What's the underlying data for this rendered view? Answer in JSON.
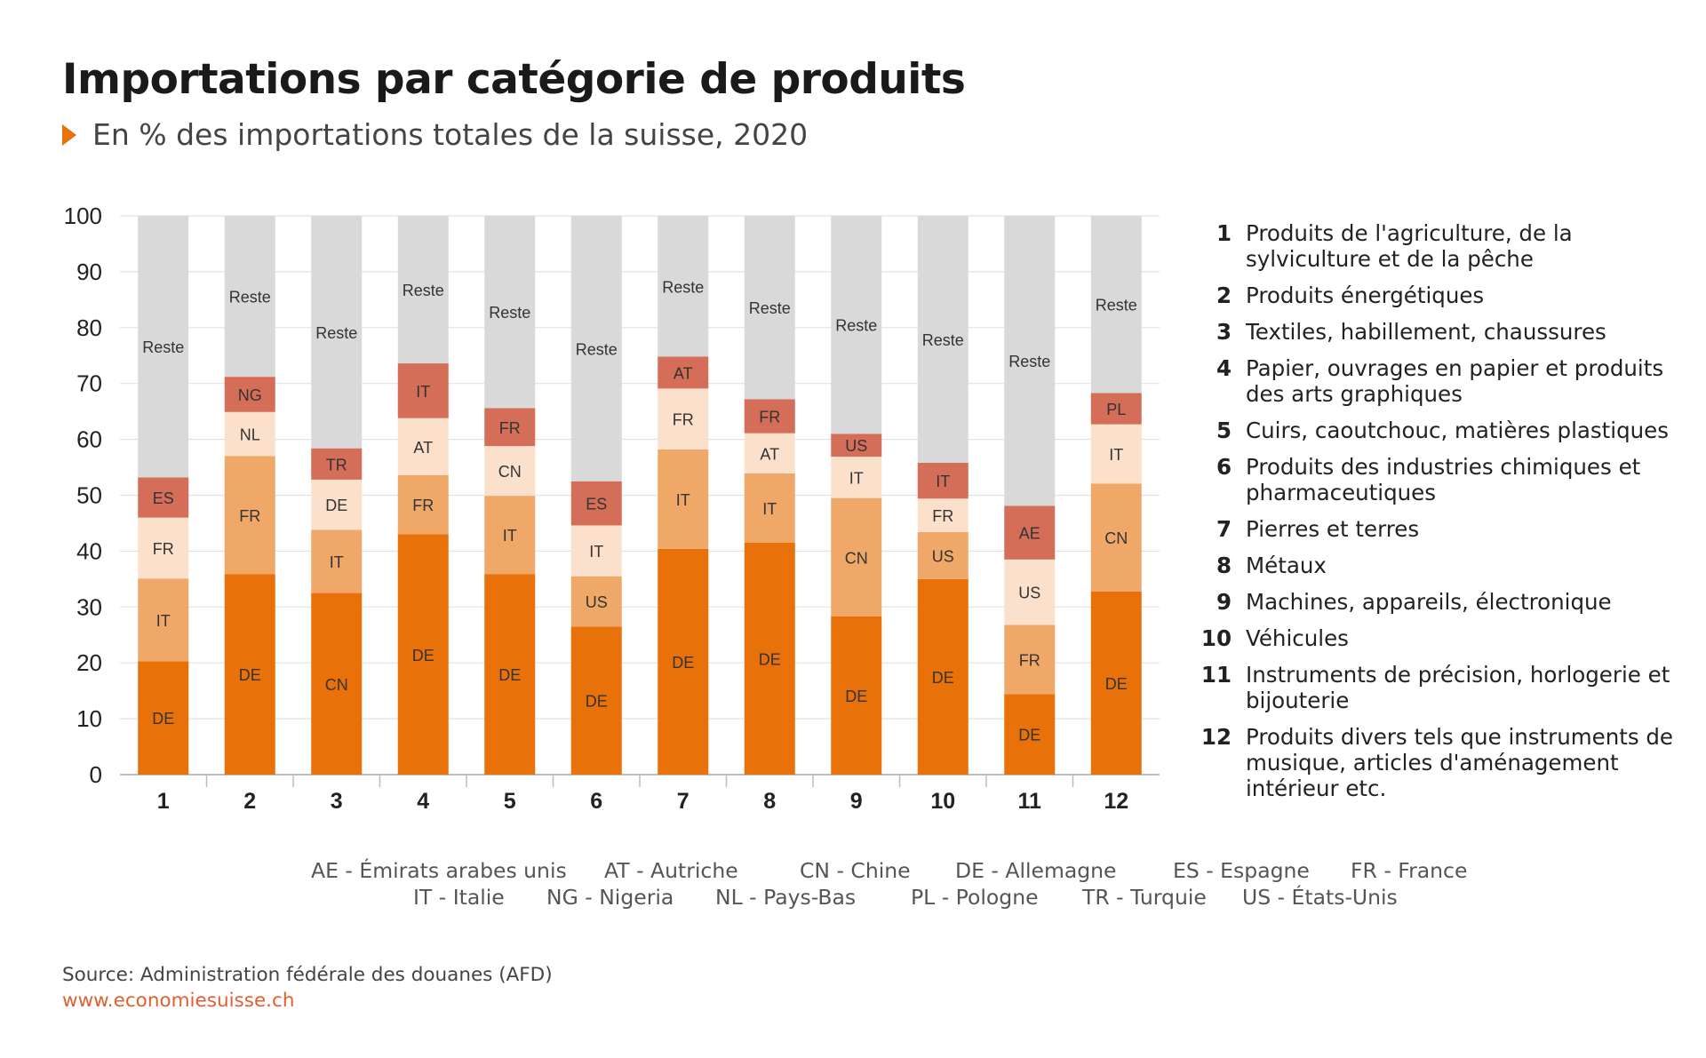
{
  "header": {
    "title": "Importations par catégorie de produits",
    "subtitle": "En % des importations totales de la suisse, 2020"
  },
  "colors": {
    "DE": "#e8710a",
    "second": "#f0a868",
    "third": "#fbe0cc",
    "fourth": "#d46e58",
    "reste": "#d9d9d9",
    "accent": "#e8710a"
  },
  "chart_data": {
    "type": "bar",
    "stacked": true,
    "ylim": [
      0,
      100
    ],
    "yticks": [
      0,
      10,
      20,
      30,
      40,
      50,
      60,
      70,
      80,
      90,
      100
    ],
    "grid": true,
    "categories": [
      "1",
      "2",
      "3",
      "4",
      "5",
      "6",
      "7",
      "8",
      "9",
      "10",
      "11",
      "12"
    ],
    "bars": [
      {
        "category": "1",
        "segments": [
          {
            "label": "DE",
            "value": 20.3
          },
          {
            "label": "IT",
            "value": 14.8
          },
          {
            "label": "FR",
            "value": 10.9
          },
          {
            "label": "ES",
            "value": 7.2
          },
          {
            "label": "Reste",
            "value": 46.8
          }
        ]
      },
      {
        "category": "2",
        "segments": [
          {
            "label": "DE",
            "value": 35.9
          },
          {
            "label": "FR",
            "value": 21.1
          },
          {
            "label": "NL",
            "value": 7.9
          },
          {
            "label": "NG",
            "value": 6.3
          },
          {
            "label": "Reste",
            "value": 28.8
          }
        ]
      },
      {
        "category": "3",
        "segments": [
          {
            "label": "CN",
            "value": 32.5
          },
          {
            "label": "IT",
            "value": 11.3
          },
          {
            "label": "DE",
            "value": 9.0
          },
          {
            "label": "TR",
            "value": 5.6
          },
          {
            "label": "Reste",
            "value": 41.6
          }
        ]
      },
      {
        "category": "4",
        "segments": [
          {
            "label": "DE",
            "value": 43.0
          },
          {
            "label": "FR",
            "value": 10.6
          },
          {
            "label": "AT",
            "value": 10.2
          },
          {
            "label": "IT",
            "value": 9.8
          },
          {
            "label": "Reste",
            "value": 26.4
          }
        ]
      },
      {
        "category": "5",
        "segments": [
          {
            "label": "DE",
            "value": 35.9
          },
          {
            "label": "IT",
            "value": 14.0
          },
          {
            "label": "CN",
            "value": 8.9
          },
          {
            "label": "FR",
            "value": 6.8
          },
          {
            "label": "Reste",
            "value": 34.4
          }
        ]
      },
      {
        "category": "6",
        "segments": [
          {
            "label": "DE",
            "value": 26.5
          },
          {
            "label": "US",
            "value": 9.0
          },
          {
            "label": "IT",
            "value": 9.1
          },
          {
            "label": "ES",
            "value": 7.9
          },
          {
            "label": "Reste",
            "value": 47.5
          }
        ]
      },
      {
        "category": "7",
        "segments": [
          {
            "label": "DE",
            "value": 40.4
          },
          {
            "label": "IT",
            "value": 17.8
          },
          {
            "label": "FR",
            "value": 10.9
          },
          {
            "label": "AT",
            "value": 5.7
          },
          {
            "label": "Reste",
            "value": 25.2
          }
        ]
      },
      {
        "category": "8",
        "segments": [
          {
            "label": "DE",
            "value": 41.5
          },
          {
            "label": "IT",
            "value": 12.4
          },
          {
            "label": "AT",
            "value": 7.2
          },
          {
            "label": "FR",
            "value": 6.1
          },
          {
            "label": "Reste",
            "value": 32.8
          }
        ]
      },
      {
        "category": "9",
        "segments": [
          {
            "label": "DE",
            "value": 28.3
          },
          {
            "label": "CN",
            "value": 21.2
          },
          {
            "label": "IT",
            "value": 7.4
          },
          {
            "label": "US",
            "value": 4.1
          },
          {
            "label": "Reste",
            "value": 39.0
          }
        ]
      },
      {
        "category": "10",
        "segments": [
          {
            "label": "DE",
            "value": 35.0
          },
          {
            "label": "US",
            "value": 8.4
          },
          {
            "label": "FR",
            "value": 6.0
          },
          {
            "label": "IT",
            "value": 6.4
          },
          {
            "label": "Reste",
            "value": 44.2
          }
        ]
      },
      {
        "category": "11",
        "segments": [
          {
            "label": "DE",
            "value": 14.4
          },
          {
            "label": "FR",
            "value": 12.4
          },
          {
            "label": "US",
            "value": 11.7
          },
          {
            "label": "AE",
            "value": 9.6
          },
          {
            "label": "Reste",
            "value": 51.9
          }
        ]
      },
      {
        "category": "12",
        "segments": [
          {
            "label": "DE",
            "value": 32.8
          },
          {
            "label": "CN",
            "value": 19.3
          },
          {
            "label": "IT",
            "value": 10.6
          },
          {
            "label": "PL",
            "value": 5.6
          },
          {
            "label": "Reste",
            "value": 31.7
          }
        ]
      }
    ]
  },
  "categories_legend": [
    {
      "num": "1",
      "text": "Produits de l'agriculture, de la sylviculture et de la pêche"
    },
    {
      "num": "2",
      "text": "Produits énergétiques"
    },
    {
      "num": "3",
      "text": "Textiles, habillement, chaussures"
    },
    {
      "num": "4",
      "text": "Papier, ouvrages en papier et produits des arts graphiques"
    },
    {
      "num": "5",
      "text": "Cuirs, caoutchouc, matières plastiques"
    },
    {
      "num": "6",
      "text": "Produits des industries chimiques et pharmaceutiques"
    },
    {
      "num": "7",
      "text": "Pierres et terres"
    },
    {
      "num": "8",
      "text": "Métaux"
    },
    {
      "num": "9",
      "text": "Machines, appareils, électronique"
    },
    {
      "num": "10",
      "text": "Véhicules"
    },
    {
      "num": "11",
      "text": "Instruments de précision, horlogerie et bijouterie"
    },
    {
      "num": "12",
      "text": "Produits divers tels que instruments de musique, articles d'aménagement intérieur etc."
    }
  ],
  "country_codes": {
    "row1": [
      "AE - Émirats arabes unis",
      "AT - Autriche",
      "CN - Chine",
      "DE - Allemagne",
      "ES - Espagne",
      "FR - France"
    ],
    "row2": [
      "IT - Italie",
      "NG - Nigeria",
      "NL - Pays-Bas",
      "PL - Pologne",
      "TR - Turquie",
      "US - États-Unis"
    ]
  },
  "footer": {
    "source": "Source: Administration fédérale des douanes (AFD)",
    "url": "www.economiesuisse.ch"
  }
}
